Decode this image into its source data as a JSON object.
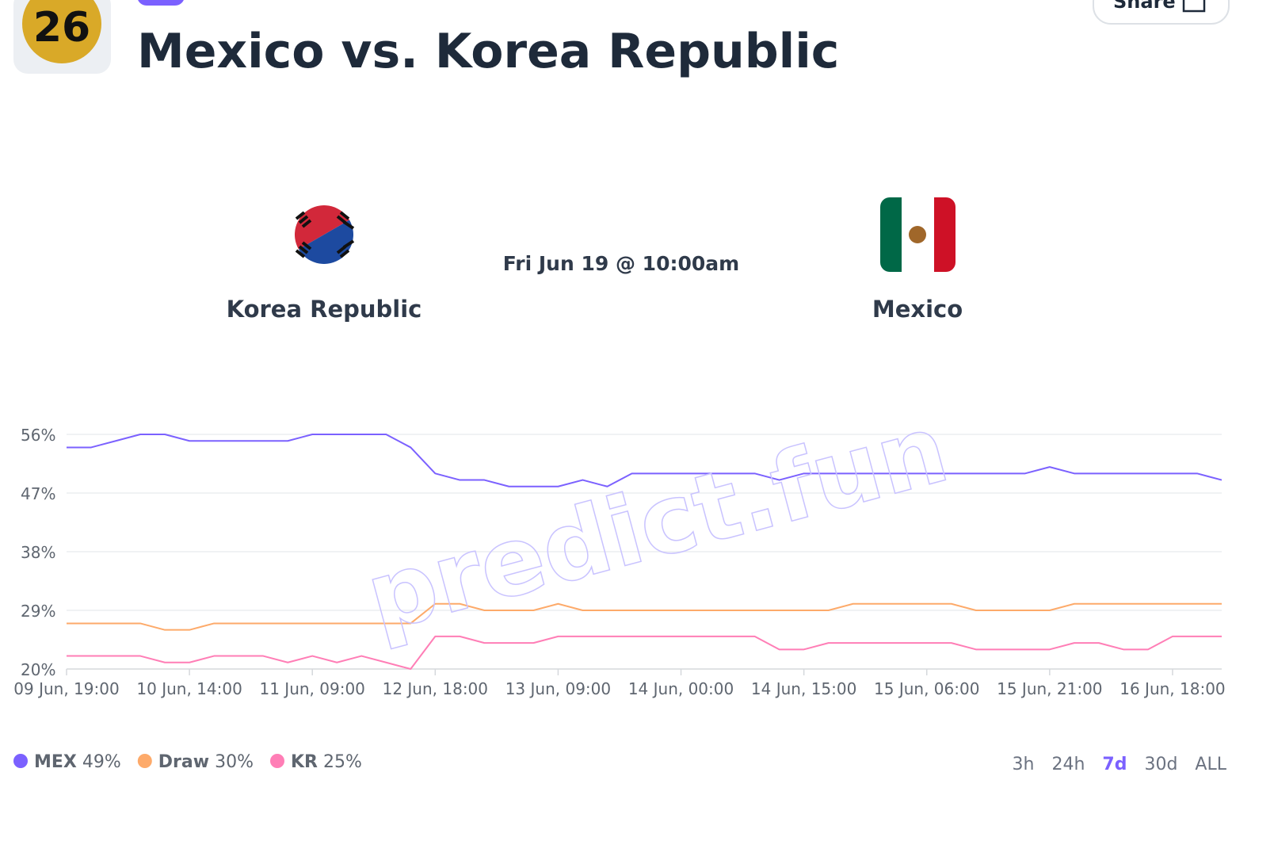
{
  "header": {
    "icon_text": "26",
    "title": "Mexico vs. Korea Republic",
    "share": "Share"
  },
  "match": {
    "home": "Korea Republic",
    "time": "Fri Jun 19 @ 10:00am",
    "away": "Mexico"
  },
  "watermark": "predict.fun",
  "chart_data": {
    "type": "line",
    "categories": [
      "09 Jun, 19:00",
      null,
      null,
      null,
      null,
      "10 Jun, 14:00",
      null,
      null,
      null,
      null,
      "11 Jun, 09:00",
      null,
      null,
      null,
      null,
      "12 Jun, 18:00",
      null,
      null,
      null,
      null,
      "13 Jun, 09:00",
      null,
      null,
      null,
      null,
      "14 Jun, 00:00",
      null,
      null,
      null,
      null,
      "14 Jun, 15:00",
      null,
      null,
      null,
      null,
      "15 Jun, 06:00",
      null,
      null,
      null,
      null,
      "15 Jun, 21:00",
      null,
      null,
      null,
      null,
      "16 Jun, 18:00",
      null,
      null
    ],
    "series": [
      {
        "name": "MEX",
        "legend_value": "49%",
        "color": "#7b61ff",
        "values": [
          54,
          54,
          55,
          56,
          56,
          55,
          55,
          55,
          55,
          55,
          56,
          56,
          56,
          56,
          54,
          50,
          49,
          49,
          48,
          48,
          48,
          49,
          48,
          50,
          50,
          50,
          50,
          50,
          50,
          49,
          50,
          50,
          50,
          50,
          50,
          50,
          50,
          50,
          50,
          50,
          51,
          50,
          50,
          50,
          50,
          50,
          50,
          49
        ]
      },
      {
        "name": "Draw",
        "legend_value": "30%",
        "color": "#fdaa6a",
        "values": [
          27,
          27,
          27,
          27,
          26,
          26,
          27,
          27,
          27,
          27,
          27,
          27,
          27,
          27,
          27,
          30,
          30,
          29,
          29,
          29,
          30,
          29,
          29,
          29,
          29,
          29,
          29,
          29,
          29,
          29,
          29,
          29,
          30,
          30,
          30,
          30,
          30,
          29,
          29,
          29,
          29,
          30,
          30,
          30,
          30,
          30,
          30,
          30
        ]
      },
      {
        "name": "KR",
        "legend_value": "25%",
        "color": "#ff7eb6",
        "values": [
          22,
          22,
          22,
          22,
          21,
          21,
          22,
          22,
          22,
          21,
          22,
          21,
          22,
          21,
          20,
          25,
          25,
          24,
          24,
          24,
          25,
          25,
          25,
          25,
          25,
          25,
          25,
          25,
          25,
          23,
          23,
          24,
          24,
          24,
          24,
          24,
          24,
          23,
          23,
          23,
          23,
          24,
          24,
          23,
          23,
          25,
          25,
          25
        ]
      }
    ],
    "ylim": [
      20,
      56
    ],
    "yticks": [
      {
        "value": 20,
        "label": "20%"
      },
      {
        "value": 29,
        "label": "29%"
      },
      {
        "value": 38,
        "label": "38%"
      },
      {
        "value": 47,
        "label": "47%"
      },
      {
        "value": 56,
        "label": "56%"
      }
    ],
    "grid": true
  },
  "range_buttons": [
    "3h",
    "24h",
    "7d",
    "30d",
    "ALL"
  ],
  "active_range": "7d"
}
